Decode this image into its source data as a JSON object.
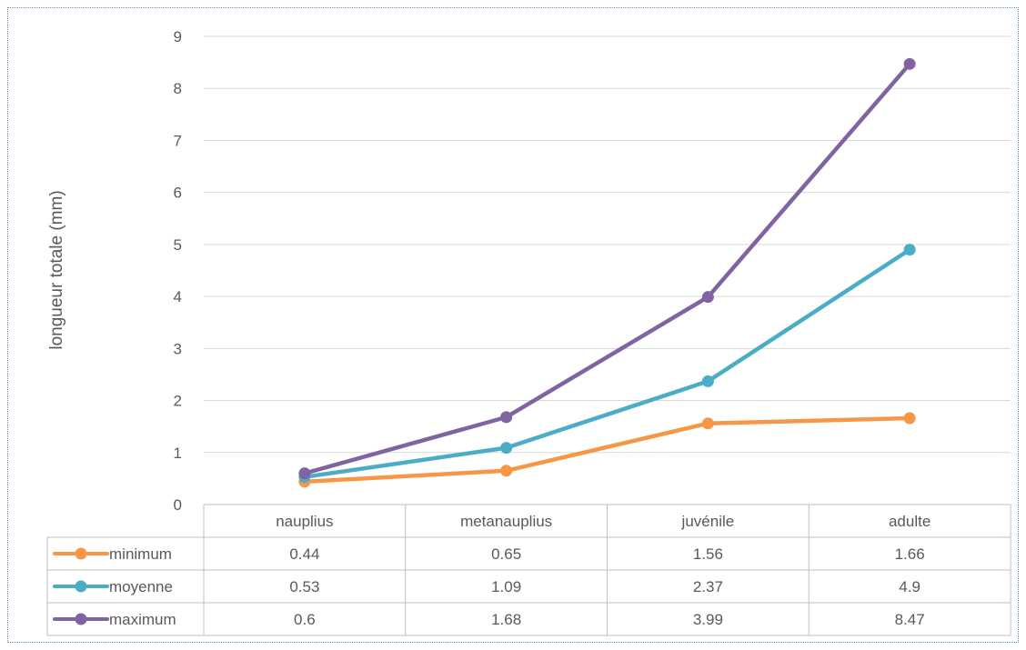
{
  "chart_data": {
    "type": "line",
    "title": "",
    "xlabel": "",
    "ylabel": "longueur totale (mm)",
    "ylim": [
      0,
      9
    ],
    "yticks": [
      0,
      1,
      2,
      3,
      4,
      5,
      6,
      7,
      8,
      9
    ],
    "grid": true,
    "legend": "data-table",
    "categories": [
      "nauplius",
      "metanauplius",
      "juvénile",
      "adulte"
    ],
    "series": [
      {
        "name": "minimum",
        "color": "#f79646",
        "values": [
          0.44,
          0.65,
          1.56,
          1.66
        ],
        "labels": [
          "0.44",
          "0.65",
          "1.56",
          "1.66"
        ]
      },
      {
        "name": "moyenne",
        "color": "#4bacc6",
        "values": [
          0.53,
          1.09,
          2.37,
          4.9
        ],
        "labels": [
          "0.53",
          "1.09",
          "2.37",
          "4.9"
        ]
      },
      {
        "name": "maximum",
        "color": "#8064a2",
        "values": [
          0.6,
          1.68,
          3.99,
          8.47
        ],
        "labels": [
          "0.6",
          "1.68",
          "3.99",
          "8.47"
        ]
      }
    ]
  }
}
